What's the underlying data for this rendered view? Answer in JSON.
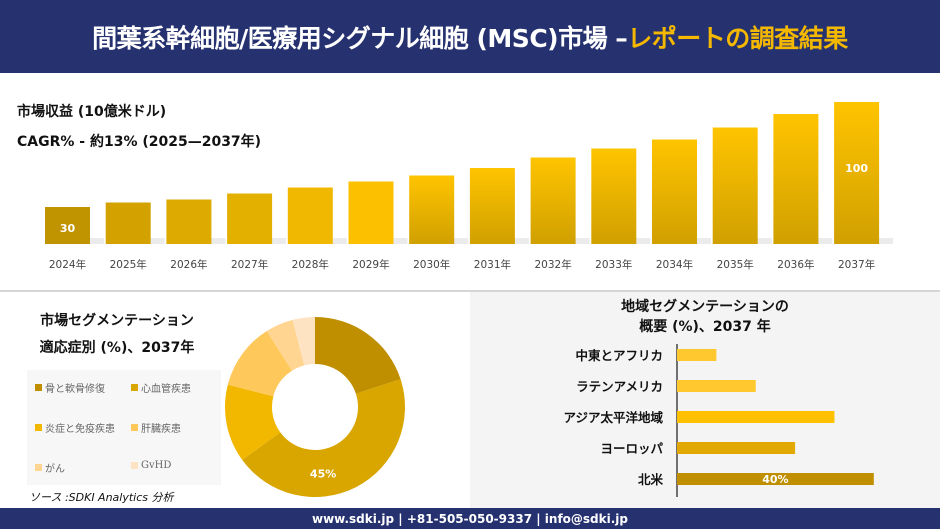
{
  "header": {
    "title_main": "間葉系幹細胞/医療用シグナル細胞 (MSC)市場 –",
    "title_accent": "レポートの調査結果"
  },
  "revenue": {
    "title": "市場収益 (10億米ドル)",
    "cagr": "CAGR% - 約13% (2025—2037年)"
  },
  "segmentation": {
    "title_line1": "市場セグメンテーション",
    "title_line2": "適応症別 (%)、2037年"
  },
  "region": {
    "title_line1": "地域セグメンテーションの",
    "title_line2": "概要 (%)、2037 年"
  },
  "source": "ソース :SDKI Analytics 分析",
  "footer": "www.sdki.jp | +81-505-050-9337 | info@sdki.jp",
  "chart_data": [
    {
      "type": "bar",
      "categories": [
        "2024年",
        "2025年",
        "2026年",
        "2027年",
        "2028年",
        "2029年",
        "2030年",
        "2031年",
        "2032年",
        "2033年",
        "2034年",
        "2035年",
        "2036年",
        "2037年"
      ],
      "values": [
        30,
        33,
        35,
        39,
        43,
        47,
        51,
        56,
        63,
        69,
        75,
        83,
        92,
        100
      ],
      "data_labels": {
        "0": "30",
        "13": "100"
      },
      "grid": false
    },
    {
      "type": "pie",
      "donut": true,
      "categories": [
        "骨と軟骨修復",
        "心血管疾患",
        "炎症と免疫疾患",
        "肝臓疾患",
        "がん",
        "GvHD"
      ],
      "values": [
        20,
        45,
        14,
        12,
        5,
        4
      ],
      "colors": [
        "#bf8f00",
        "#d9a600",
        "#f2b800",
        "#ffc85a",
        "#ffd591",
        "#fde3c2"
      ],
      "data_labels": {
        "1": "45%"
      },
      "legend": "left"
    },
    {
      "type": "bar",
      "orientation": "horizontal",
      "categories": [
        "中東とアフリカ",
        "ラテンアメリカ",
        "アジア太平洋地域",
        "ヨーロッパ",
        "北米"
      ],
      "values": [
        8,
        16,
        32,
        24,
        40
      ],
      "colors": [
        "#ffc82e",
        "#ffc82e",
        "#ffc000",
        "#e0a800",
        "#bf8f00"
      ],
      "data_labels": {
        "4": "40%"
      }
    }
  ]
}
